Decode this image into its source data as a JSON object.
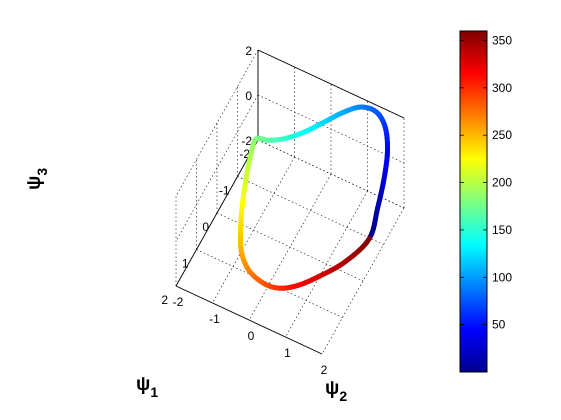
{
  "chart_data": {
    "type": "line",
    "projection": "3d",
    "title": "",
    "grid": true,
    "colormap": "jet",
    "axes": {
      "psi1": {
        "label": "ψ",
        "sub": "1",
        "range": [
          -2,
          2
        ],
        "ticks": [
          "-2",
          "-1",
          "0",
          "1",
          "2"
        ]
      },
      "psi2": {
        "label": "ψ",
        "sub": "2",
        "range": [
          -2,
          2
        ],
        "ticks": [
          "-2",
          "-1",
          "0",
          "1",
          "2"
        ]
      },
      "psi3": {
        "label": "ψ",
        "sub": "3",
        "range": [
          -2,
          2
        ],
        "ticks": [
          "-2",
          "0",
          "2"
        ]
      }
    },
    "colorbar": {
      "range": [
        0,
        360
      ],
      "ticks": [
        "50",
        "100",
        "150",
        "200",
        "250",
        "300",
        "350"
      ],
      "tick_values": [
        50,
        100,
        150,
        200,
        250,
        300,
        350
      ]
    },
    "series": [
      {
        "color_by": "angle",
        "points": [
          {
            "t": 0,
            "psi1": -0.4,
            "psi2": 1.95,
            "psi3": -0.8
          },
          {
            "t": 15,
            "psi1": -0.8,
            "psi2": 1.95,
            "psi3": -0.1
          },
          {
            "t": 30,
            "psi1": -1.2,
            "psi2": 1.9,
            "psi3": 0.5
          },
          {
            "t": 45,
            "psi1": -1.55,
            "psi2": 1.8,
            "psi3": 1.1
          },
          {
            "t": 60,
            "psi1": -1.8,
            "psi2": 1.6,
            "psi3": 1.6
          },
          {
            "t": 75,
            "psi1": -1.9,
            "psi2": 1.3,
            "psi3": 1.9
          },
          {
            "t": 90,
            "psi1": -1.85,
            "psi2": 0.9,
            "psi3": 1.9
          },
          {
            "t": 105,
            "psi1": -1.7,
            "psi2": 0.5,
            "psi3": 1.6
          },
          {
            "t": 120,
            "psi1": -1.5,
            "psi2": 0.1,
            "psi3": 1.2
          },
          {
            "t": 135,
            "psi1": -1.3,
            "psi2": -0.3,
            "psi3": 0.8
          },
          {
            "t": 150,
            "psi1": -1.15,
            "psi2": -0.75,
            "psi3": 0.4
          },
          {
            "t": 165,
            "psi1": -1.1,
            "psi2": -1.2,
            "psi3": 0.05
          },
          {
            "t": 180,
            "psi1": -1.1,
            "psi2": -1.55,
            "psi3": -0.15
          },
          {
            "t": 195,
            "psi1": -0.85,
            "psi2": -1.55,
            "psi3": -0.45
          },
          {
            "t": 210,
            "psi1": -0.45,
            "psi2": -1.45,
            "psi3": -0.75
          },
          {
            "t": 225,
            "psi1": 0.0,
            "psi2": -1.3,
            "psi3": -1.05
          },
          {
            "t": 240,
            "psi1": 0.45,
            "psi2": -1.1,
            "psi3": -1.3
          },
          {
            "t": 255,
            "psi1": 0.85,
            "psi2": -0.85,
            "psi3": -1.5
          },
          {
            "t": 270,
            "psi1": 1.1,
            "psi2": -0.5,
            "psi3": -1.65
          },
          {
            "t": 285,
            "psi1": 1.2,
            "psi2": -0.05,
            "psi3": -1.7
          },
          {
            "t": 300,
            "psi1": 1.15,
            "psi2": 0.35,
            "psi3": -1.7
          },
          {
            "t": 315,
            "psi1": 0.95,
            "psi2": 0.75,
            "psi3": -1.6
          },
          {
            "t": 330,
            "psi1": 0.6,
            "psi2": 1.15,
            "psi3": -1.45
          },
          {
            "t": 345,
            "psi1": 0.15,
            "psi2": 1.6,
            "psi3": -1.2
          },
          {
            "t": 360,
            "psi1": -0.4,
            "psi2": 1.95,
            "psi3": -0.8
          }
        ]
      }
    ]
  }
}
